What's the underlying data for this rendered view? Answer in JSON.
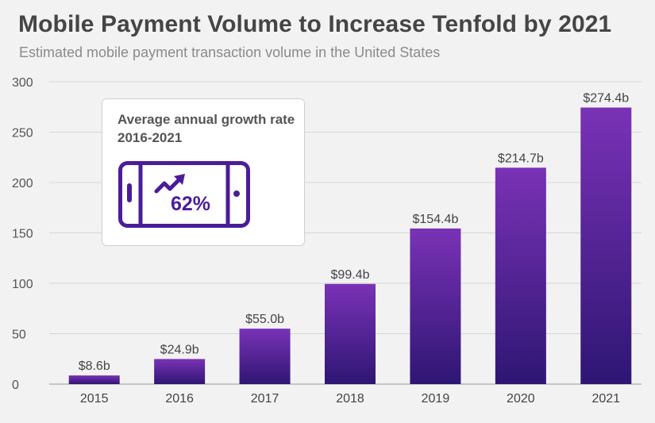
{
  "header": {
    "title": "Mobile Payment Volume to Increase Tenfold by 2021",
    "subtitle": "Estimated mobile payment transaction volume in the United States"
  },
  "callout": {
    "text": "Average annual growth rate 2016-2021",
    "value": "62%",
    "icon": "smartphone-trend-up-icon"
  },
  "colors": {
    "background": "#f2f2f2",
    "bar_top": "#7a32b6",
    "bar_bottom": "#2e1673",
    "text": "#454545",
    "grid": "#d6d6d6",
    "accent": "#4b1c9a"
  },
  "chart_data": {
    "type": "bar",
    "categories": [
      "2015",
      "2016",
      "2017",
      "2018",
      "2019",
      "2020",
      "2021"
    ],
    "values": [
      8.6,
      24.9,
      55.0,
      99.4,
      154.4,
      214.7,
      274.4
    ],
    "labels": [
      "$8.6b",
      "$24.9b",
      "$55.0b",
      "$99.4b",
      "$154.4b",
      "$214.7b",
      "$274.4b"
    ],
    "yticks": [
      0,
      50,
      100,
      150,
      200,
      250,
      300
    ],
    "ylim": [
      0,
      300
    ],
    "grid": true,
    "title": "Mobile Payment Volume to Increase Tenfold by 2021",
    "xlabel": "",
    "ylabel": ""
  }
}
